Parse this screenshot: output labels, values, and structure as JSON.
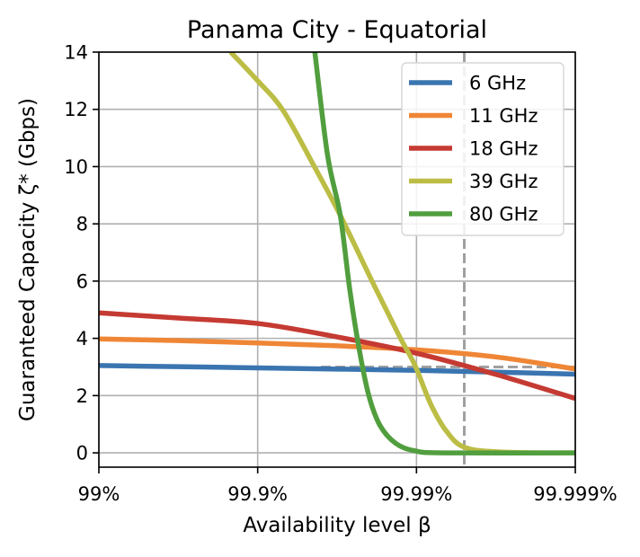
{
  "chart_data": {
    "type": "line",
    "title": "Panama City - Equatorial",
    "xlabel": "Availability level β",
    "ylabel": "Guaranteed Capacity ζ* (Gbps)",
    "x_scale": "log of unavailability (1 - β)",
    "xlim": [
      99,
      99.999
    ],
    "ylim": [
      -0.5,
      14
    ],
    "x_ticks": [
      99,
      99.9,
      99.99,
      99.999
    ],
    "x_tick_labels": [
      "99%",
      "99.9%",
      "99.99%",
      "99.999%"
    ],
    "y_ticks": [
      0,
      2,
      4,
      6,
      8,
      10,
      12,
      14
    ],
    "y_tick_labels": [
      "0",
      "2",
      "4",
      "6",
      "8",
      "10",
      "12",
      "14"
    ],
    "grid": true,
    "legend_position": "top-right",
    "reference_lines": {
      "vertical_x": 99.995,
      "horizontal_y": 3.0,
      "horizontal_from_x": 99.96,
      "color": "#a0a0a0",
      "style": "dashed"
    },
    "series": [
      {
        "name": "6 GHz",
        "color": "#3a75b0",
        "x": [
          99,
          99.6838,
          99.9,
          99.99,
          99.99684,
          99.999
        ],
        "y": [
          3.05,
          3.01,
          2.97,
          2.88,
          2.82,
          2.75
        ]
      },
      {
        "name": "11 GHz",
        "color": "#ef8636",
        "x": [
          99,
          99.6838,
          99.9,
          99.96838,
          99.99,
          99.99684,
          99.999
        ],
        "y": [
          3.98,
          3.92,
          3.84,
          3.74,
          3.6,
          3.35,
          2.93
        ]
      },
      {
        "name": "18 GHz",
        "color": "#c53a32",
        "x": [
          99,
          99.6838,
          99.9,
          99.96838,
          99.99,
          99.99684,
          99.999
        ],
        "y": [
          4.89,
          4.71,
          4.52,
          4.05,
          3.48,
          2.74,
          1.9
        ]
      },
      {
        "name": "39 GHz",
        "color": "#bcbd45",
        "x": [
          99.8521,
          99.9,
          99.93082,
          99.95635,
          99.9698,
          99.98095,
          99.98712,
          99.98977,
          99.99187,
          99.99354,
          99.9951,
          99.99731,
          99.999
        ],
        "y": [
          14,
          13.0,
          11.96,
          9.97,
          8.3,
          6.0,
          4.1,
          3.06,
          1.7,
          0.75,
          0.18,
          0.02,
          0.0
        ]
      },
      {
        "name": "80 GHz",
        "color": "#519e3e",
        "x": [
          99.95635,
          99.96369,
          99.9698,
          99.9737,
          99.97709,
          99.98005,
          99.98302,
          99.98651,
          99.98977,
          99.99324,
          99.999
        ],
        "y": [
          14,
          10.4,
          8.3,
          5.7,
          3.6,
          2.0,
          0.96,
          0.33,
          0.07,
          0.0,
          0.0
        ]
      }
    ]
  }
}
